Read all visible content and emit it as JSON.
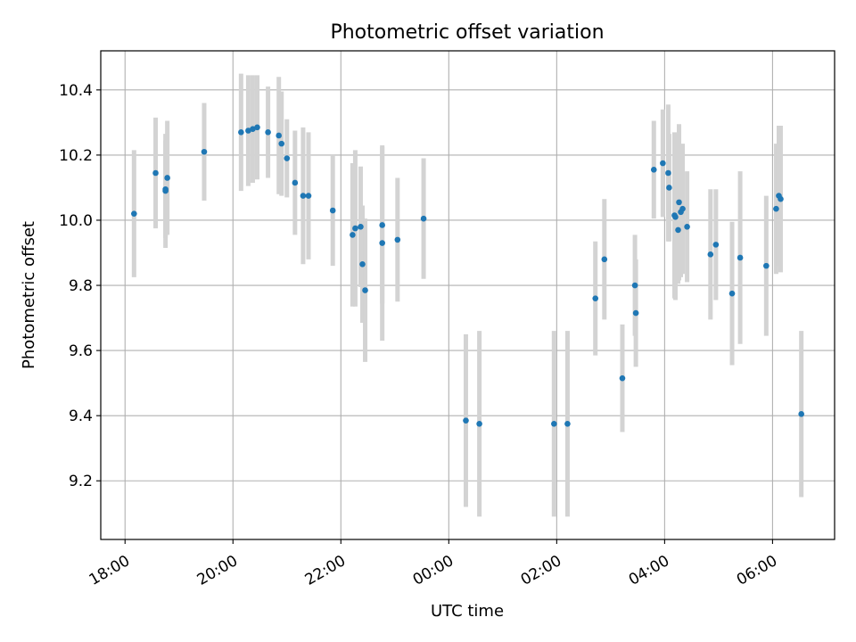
{
  "chart_data": {
    "type": "scatter",
    "title": "Photometric offset variation",
    "xlabel": "UTC time",
    "ylabel": "Photometric offset",
    "x_tick_labels": [
      "18:00",
      "20:00",
      "22:00",
      "00:00",
      "02:00",
      "04:00",
      "06:00"
    ],
    "x_ticks_hours": [
      0,
      2,
      4,
      6,
      8,
      10,
      12
    ],
    "xlim_hours": [
      -0.45,
      13.15
    ],
    "y_ticks": [
      9.2,
      9.4,
      9.6,
      9.8,
      10.0,
      10.2,
      10.4
    ],
    "y_tick_labels": [
      "9.2",
      "9.4",
      "9.6",
      "9.8",
      "10.0",
      "10.2",
      "10.4"
    ],
    "ylim": [
      9.02,
      10.52
    ],
    "grid": true,
    "colors": {
      "point": "#1f77b4",
      "errorbar": "#d3d3d3",
      "grid": "#b0b0b0"
    },
    "series": [
      {
        "x": [
          "18:10",
          "18:34",
          "18:45",
          "18:45",
          "18:47",
          "19:28",
          "20:09",
          "20:17",
          "20:22",
          "20:27",
          "20:39",
          "20:51",
          "20:54",
          "21:00",
          "21:09",
          "21:18",
          "21:24",
          "21:51",
          "22:13",
          "22:16",
          "22:22",
          "22:24",
          "22:27",
          "22:46",
          "22:46",
          "23:03",
          "23:32",
          "00:19",
          "00:34",
          "01:57",
          "02:12",
          "02:43",
          "02:53",
          "03:13",
          "03:27",
          "03:28",
          "03:48",
          "03:58",
          "04:04",
          "04:05",
          "04:11",
          "04:12",
          "04:15",
          "04:16",
          "04:18",
          "04:20",
          "04:25",
          "04:51",
          "04:57",
          "05:15",
          "05:24",
          "05:53",
          "06:04",
          "06:07",
          "06:09",
          "06:32"
        ],
        "y": [
          10.02,
          10.145,
          10.09,
          10.095,
          10.13,
          10.21,
          10.27,
          10.275,
          10.28,
          10.285,
          10.27,
          10.26,
          10.235,
          10.19,
          10.115,
          10.075,
          10.075,
          10.03,
          9.955,
          9.975,
          9.98,
          9.865,
          9.785,
          9.93,
          9.985,
          9.94,
          10.005,
          9.385,
          9.375,
          9.375,
          9.375,
          9.76,
          9.88,
          9.515,
          9.8,
          9.715,
          10.155,
          10.175,
          10.145,
          10.1,
          10.015,
          10.01,
          9.97,
          10.055,
          10.025,
          10.035,
          9.98,
          9.895,
          9.925,
          9.775,
          9.885,
          9.86,
          10.035,
          10.075,
          10.065,
          9.405
        ],
        "yerr": [
          0.195,
          0.17,
          0.175,
          0.15,
          0.175,
          0.15,
          0.18,
          0.17,
          0.165,
          0.16,
          0.14,
          0.18,
          0.16,
          0.12,
          0.16,
          0.21,
          0.195,
          0.17,
          0.22,
          0.24,
          0.185,
          0.18,
          0.22,
          0.3,
          0.24,
          0.19,
          0.185,
          0.265,
          0.285,
          0.285,
          0.285,
          0.175,
          0.185,
          0.165,
          0.155,
          0.165,
          0.15,
          0.165,
          0.21,
          0.165,
          0.255,
          0.255,
          0.165,
          0.24,
          0.2,
          0.2,
          0.17,
          0.2,
          0.17,
          0.22,
          0.265,
          0.215,
          0.2,
          0.215,
          0.225,
          0.255
        ]
      }
    ]
  }
}
